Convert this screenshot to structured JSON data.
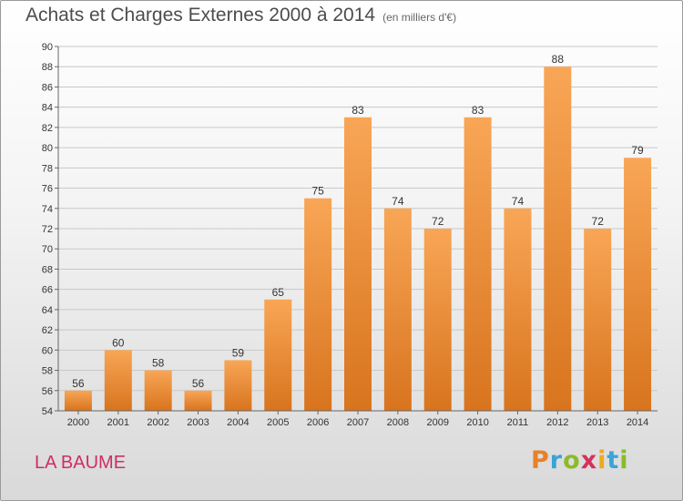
{
  "header": {
    "title": "Achats et Charges Externes 2000 à 2014",
    "subtitle": "(en milliers d'€)"
  },
  "footer": {
    "location": "LA BAUME",
    "logo": {
      "letters": [
        "P",
        "r",
        "o",
        "x",
        "i",
        "t",
        "i"
      ],
      "colors": [
        "#e8812a",
        "#3aa4d8",
        "#8bbb2a",
        "#d6305c",
        "#f0a91a",
        "#3aa4d8",
        "#8bbb2a"
      ]
    }
  },
  "colors": {
    "bar_top": "#f8a656",
    "bar_bottom": "#d8741e",
    "grid": "#c8c8c8",
    "axis": "#666666"
  },
  "chart_data": {
    "type": "bar",
    "title": "Achats et Charges Externes 2000 à 2014",
    "subtitle": "(en milliers d'€)",
    "categories": [
      "2000",
      "2001",
      "2002",
      "2003",
      "2004",
      "2005",
      "2006",
      "2007",
      "2008",
      "2009",
      "2010",
      "2011",
      "2012",
      "2013",
      "2014"
    ],
    "values": [
      56,
      60,
      58,
      56,
      59,
      65,
      75,
      83,
      74,
      72,
      83,
      74,
      88,
      72,
      79
    ],
    "ylim": [
      54,
      90
    ],
    "yticks": [
      54,
      56,
      58,
      60,
      62,
      64,
      66,
      68,
      70,
      72,
      74,
      76,
      78,
      80,
      82,
      84,
      86,
      88,
      90
    ],
    "grid": true,
    "data_labels": true
  }
}
